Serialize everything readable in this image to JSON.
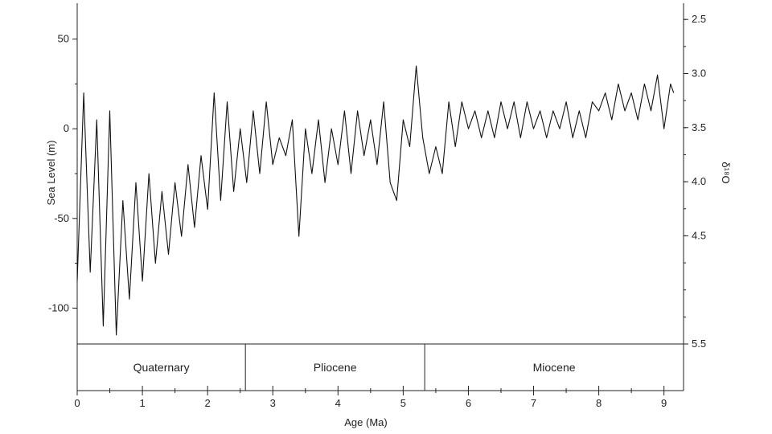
{
  "chart_data": {
    "type": "line",
    "title": "",
    "xlabel": "Age (Ma)",
    "ylabel": "Sea Level (m)",
    "y2label": "δ¹⁸O",
    "xlim": [
      0,
      9.3
    ],
    "ylim": [
      -120,
      70
    ],
    "y2lim": [
      2.35,
      5.5
    ],
    "y2_inverted": true,
    "grid": false,
    "legend": "none",
    "x_ticks": [
      0,
      1,
      2,
      3,
      4,
      5,
      6,
      7,
      8,
      9
    ],
    "y_ticks": [
      50,
      0,
      -50,
      -100
    ],
    "y2_ticks": [
      "2.5",
      "3.0",
      "3.5",
      "4.0",
      "4.5",
      "5.5"
    ],
    "line_color": "#111111",
    "series": [
      {
        "x": [
          0.0,
          0.1,
          0.2,
          0.3,
          0.4,
          0.5,
          0.6,
          0.7,
          0.8,
          0.9,
          1.0,
          1.1,
          1.2,
          1.3,
          1.4,
          1.5,
          1.6,
          1.7,
          1.8,
          1.9,
          2.0,
          2.1,
          2.2,
          2.3,
          2.4,
          2.5,
          2.6,
          2.7,
          2.8,
          2.9,
          3.0,
          3.1,
          3.2,
          3.3,
          3.4,
          3.5,
          3.6,
          3.7,
          3.8,
          3.9,
          4.0,
          4.1,
          4.2,
          4.3,
          4.4,
          4.5,
          4.6,
          4.7,
          4.8,
          4.9,
          5.0,
          5.1,
          5.2,
          5.3,
          5.4,
          5.5,
          5.6,
          5.7,
          5.8,
          5.9,
          6.0,
          6.1,
          6.2,
          6.3,
          6.4,
          6.5,
          6.6,
          6.7,
          6.8,
          6.9,
          7.0,
          7.1,
          7.2,
          7.3,
          7.4,
          7.5,
          7.6,
          7.7,
          7.8,
          7.9,
          8.0,
          8.1,
          8.2,
          8.3,
          8.4,
          8.5,
          8.6,
          8.7,
          8.8,
          8.9,
          9.0,
          9.1,
          9.15
        ],
        "values": [
          -85,
          20,
          -80,
          5,
          -110,
          10,
          -115,
          -40,
          -95,
          -30,
          -85,
          -25,
          -75,
          -35,
          -70,
          -30,
          -60,
          -20,
          -55,
          -15,
          -45,
          20,
          -40,
          15,
          -35,
          0,
          -30,
          10,
          -25,
          15,
          -20,
          -5,
          -15,
          5,
          -60,
          0,
          -25,
          5,
          -30,
          0,
          -20,
          10,
          -25,
          10,
          -15,
          5,
          -20,
          15,
          -30,
          -40,
          5,
          -10,
          35,
          -5,
          -25,
          -10,
          -25,
          15,
          -10,
          15,
          0,
          10,
          -5,
          10,
          -5,
          15,
          0,
          15,
          -5,
          15,
          0,
          10,
          -5,
          10,
          0,
          15,
          -5,
          10,
          -5,
          15,
          10,
          20,
          5,
          25,
          10,
          20,
          5,
          25,
          10,
          30,
          0,
          25,
          20
        ]
      }
    ],
    "epochs": [
      {
        "name": "Quaternary",
        "start": 0,
        "end": 2.58
      },
      {
        "name": "Pliocene",
        "start": 2.58,
        "end": 5.33
      },
      {
        "name": "Miocene",
        "start": 5.33,
        "end": 9.3
      }
    ]
  }
}
